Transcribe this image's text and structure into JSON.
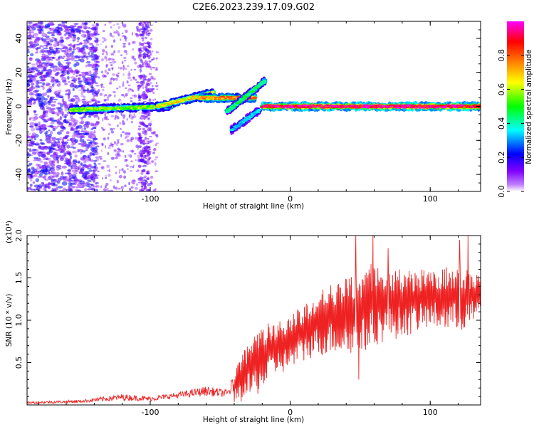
{
  "title": "C2E6.2023.239.17.09.G02",
  "chart_data": [
    {
      "type": "heatmap",
      "xlabel": "Height of straight line (km)",
      "ylabel": "Frequency (Hz)",
      "xlim": [
        -188,
        136
      ],
      "ylim": [
        -50,
        50
      ],
      "x_ticks": [
        -100,
        0,
        100
      ],
      "x_tick_labels": [
        "-100",
        "0",
        "100"
      ],
      "y_ticks": [
        -40,
        -20,
        0,
        20,
        40
      ],
      "y_tick_labels": [
        "-40",
        "-20",
        "0",
        "20",
        "40"
      ],
      "colorbar": {
        "label": "Normalized spectral amplitude",
        "range": [
          0,
          1
        ],
        "ticks": [
          "0.0",
          "0.2",
          "0.4",
          "0.6",
          "0.8"
        ],
        "colors": [
          "#ffffff",
          "#8000ff",
          "#0000ff",
          "#00ffff",
          "#00ff00",
          "#ffff00",
          "#ff8000",
          "#ff0000",
          "#ff00ff"
        ]
      },
      "tracks": [
        {
          "x_start": -157,
          "x_end": -85,
          "f_start": -2,
          "f_end": 0,
          "amplitude": 0.55
        },
        {
          "x_start": -95,
          "x_end": -55,
          "f_start": 0,
          "f_end": 8,
          "amplitude": 0.65
        },
        {
          "x_start": -65,
          "x_end": -25,
          "f_start": 5,
          "f_end": 5,
          "amplitude": 0.75
        },
        {
          "x_start": -45,
          "x_end": -18,
          "f_start": -3,
          "f_end": 15,
          "amplitude": 0.45
        },
        {
          "x_start": -42,
          "x_end": -22,
          "f_start": -14,
          "f_end": -2,
          "amplitude": 0.35
        },
        {
          "x_start": -20,
          "x_end": 136,
          "f_start": 0,
          "f_end": 0,
          "amplitude": 0.92
        }
      ],
      "noise_band": {
        "x_start": -188,
        "x_end": -140,
        "amplitude": 0.2
      }
    },
    {
      "type": "line",
      "xlabel": "Height of straight line (km)",
      "ylabel": "SNR (10 * v/v)",
      "y_multiplier": "(x10⁴)",
      "xlim": [
        -188,
        136
      ],
      "ylim": [
        0,
        2.0
      ],
      "x_ticks": [
        -100,
        0,
        100
      ],
      "x_tick_labels": [
        "-100",
        "0",
        "100"
      ],
      "y_ticks": [
        0.5,
        1.0,
        1.5,
        2.0
      ],
      "y_tick_labels": [
        "0.5",
        "1.0",
        "1.5",
        "2.0"
      ],
      "color": "#ee2222",
      "series_envelope": [
        {
          "x": -188,
          "low": 0.0,
          "high": 0.04
        },
        {
          "x": -150,
          "low": 0.01,
          "high": 0.06
        },
        {
          "x": -120,
          "low": 0.02,
          "high": 0.13
        },
        {
          "x": -100,
          "low": 0.02,
          "high": 0.1
        },
        {
          "x": -80,
          "low": 0.05,
          "high": 0.15
        },
        {
          "x": -60,
          "low": 0.06,
          "high": 0.22
        },
        {
          "x": -45,
          "low": 0.05,
          "high": 0.18
        },
        {
          "x": -38,
          "low": 0.02,
          "high": 0.45
        },
        {
          "x": -30,
          "low": 0.05,
          "high": 0.75
        },
        {
          "x": -20,
          "low": 0.15,
          "high": 0.95
        },
        {
          "x": -10,
          "low": 0.35,
          "high": 1.0
        },
        {
          "x": 0,
          "low": 0.4,
          "high": 1.05
        },
        {
          "x": 15,
          "low": 0.55,
          "high": 1.3
        },
        {
          "x": 30,
          "low": 0.6,
          "high": 1.45
        },
        {
          "x": 50,
          "low": 0.55,
          "high": 1.55
        },
        {
          "x": 60,
          "low": 0.7,
          "high": 1.7
        },
        {
          "x": 80,
          "low": 0.8,
          "high": 1.6
        },
        {
          "x": 100,
          "low": 0.9,
          "high": 1.6
        },
        {
          "x": 120,
          "low": 0.85,
          "high": 1.65
        },
        {
          "x": 136,
          "low": 1.0,
          "high": 1.55
        }
      ],
      "spikes": [
        {
          "x": 47,
          "y": 2.0
        },
        {
          "x": 59,
          "y": 2.0
        },
        {
          "x": 127,
          "y": 2.0
        },
        {
          "x": 121,
          "y": 1.95
        },
        {
          "x": 70,
          "y": 1.85
        },
        {
          "x": 49,
          "y": 0.3
        }
      ]
    }
  ]
}
